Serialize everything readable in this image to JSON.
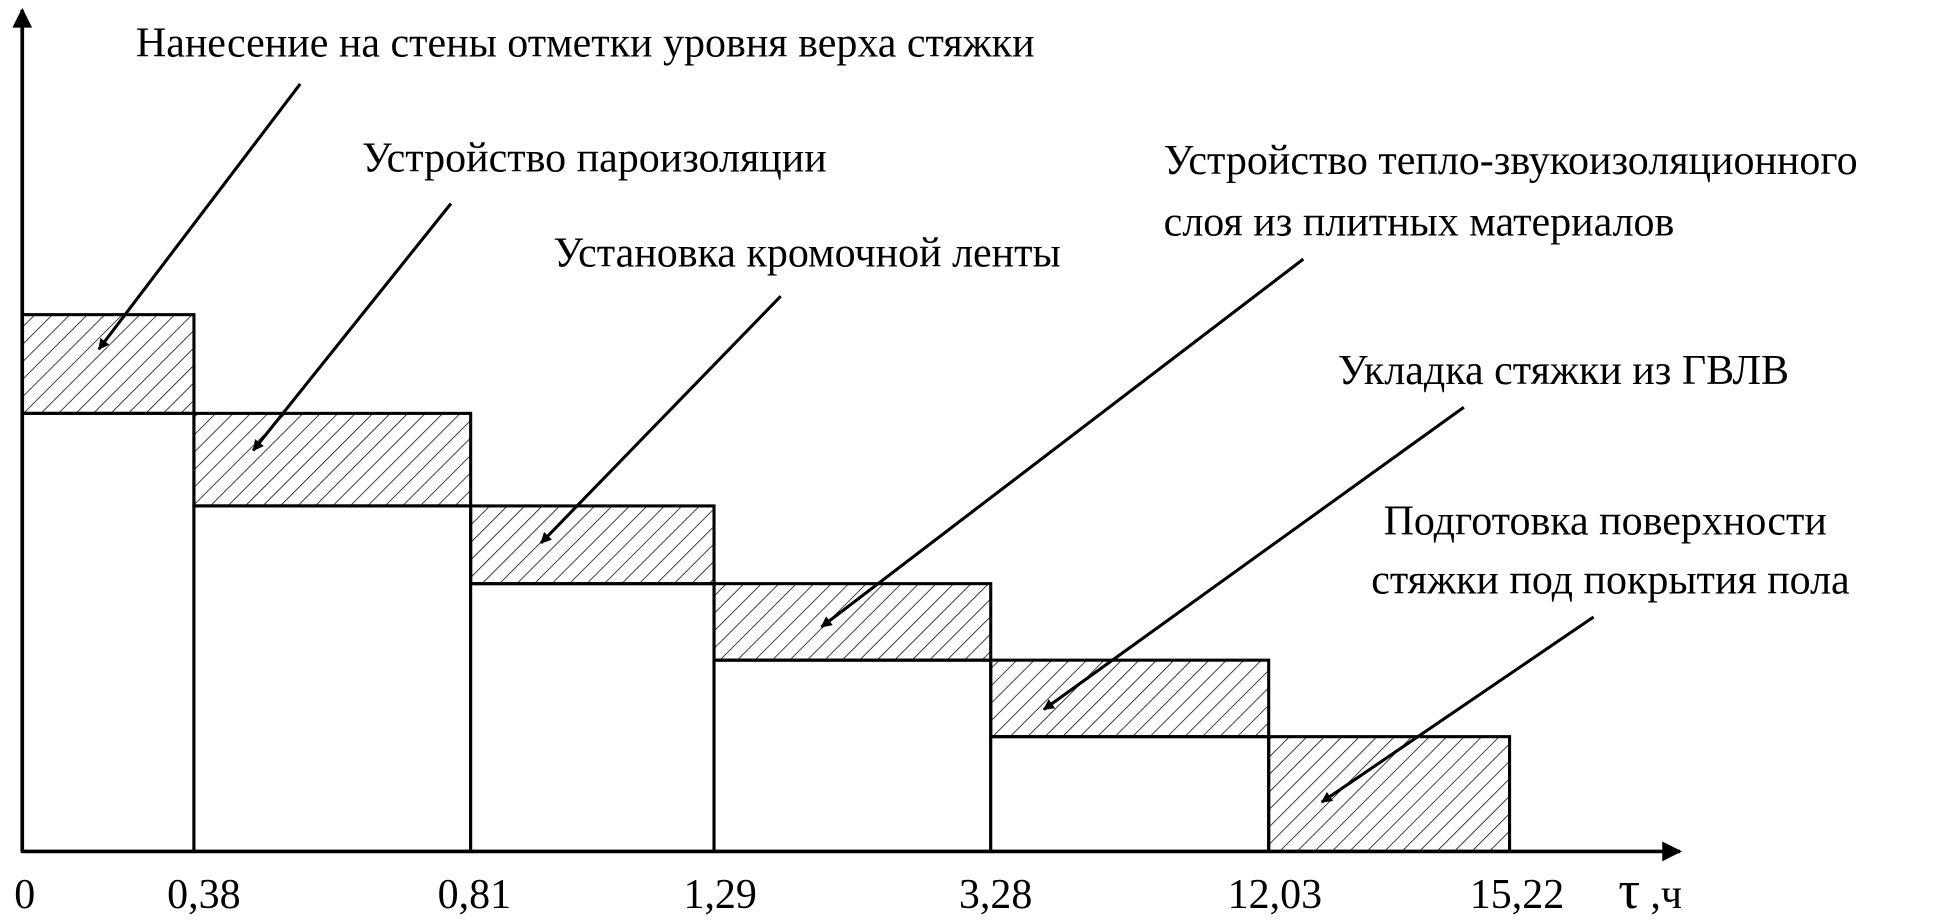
{
  "tasks": [
    {
      "lines": [
        "Нанесение на стены отметки уровня верха стяжки"
      ]
    },
    {
      "lines": [
        "Устройство пароизоляции"
      ]
    },
    {
      "lines": [
        "Установка кромочной ленты"
      ]
    },
    {
      "lines": [
        "Устройство тепло-звукоизоляционного",
        "слоя из плитных материалов"
      ]
    },
    {
      "lines": [
        "Укладка стяжки из ГВЛВ"
      ]
    },
    {
      "lines": [
        "Подготовка поверхности",
        "стяжки под покрытия пола"
      ]
    }
  ],
  "ticks": [
    "0",
    "0,38",
    "0,81",
    "1,29",
    "3,28",
    "12,03",
    "15,22"
  ],
  "axis_label": {
    "symbol": "τ",
    "unit": ",ч"
  }
}
